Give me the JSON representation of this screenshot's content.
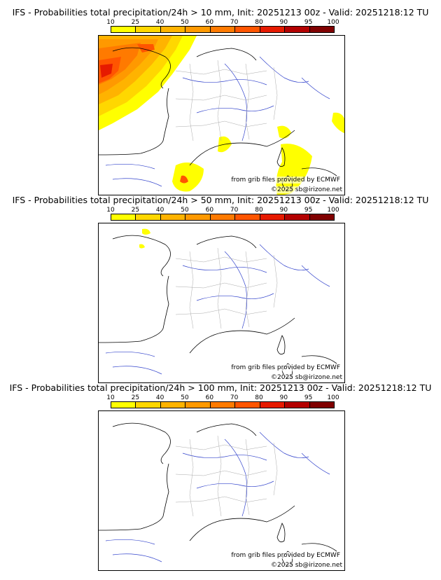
{
  "scale": {
    "labels": [
      "10",
      "25",
      "40",
      "50",
      "60",
      "70",
      "80",
      "90",
      "95",
      "100"
    ],
    "colors": [
      "#ffff00",
      "#ffd700",
      "#ffb300",
      "#ff9900",
      "#ff7a00",
      "#ff5500",
      "#e61a00",
      "#b30000",
      "#800000",
      "#4d0000"
    ]
  },
  "panels": [
    {
      "title": "IFS - Probabilities total precipitation/24h > 10 mm, Init: 20251213 00z - Valid: 20251218:12 TU",
      "credit": "from grib files provided by ECMWF",
      "copyright": "©2025 sb@irizone.net"
    },
    {
      "title": "IFS - Probabilities total precipitation/24h > 50 mm, Init: 20251213 00z - Valid: 20251218:12 TU",
      "credit": "from grib files provided by ECMWF",
      "copyright": "©2025 sb@irizone.net"
    },
    {
      "title": "IFS - Probabilities total precipitation/24h > 100 mm, Init: 20251213 00z - Valid: 20251218:12 TU",
      "credit": "from grib files provided by ECMWF",
      "copyright": "©2025 sb@irizone.net"
    }
  ]
}
